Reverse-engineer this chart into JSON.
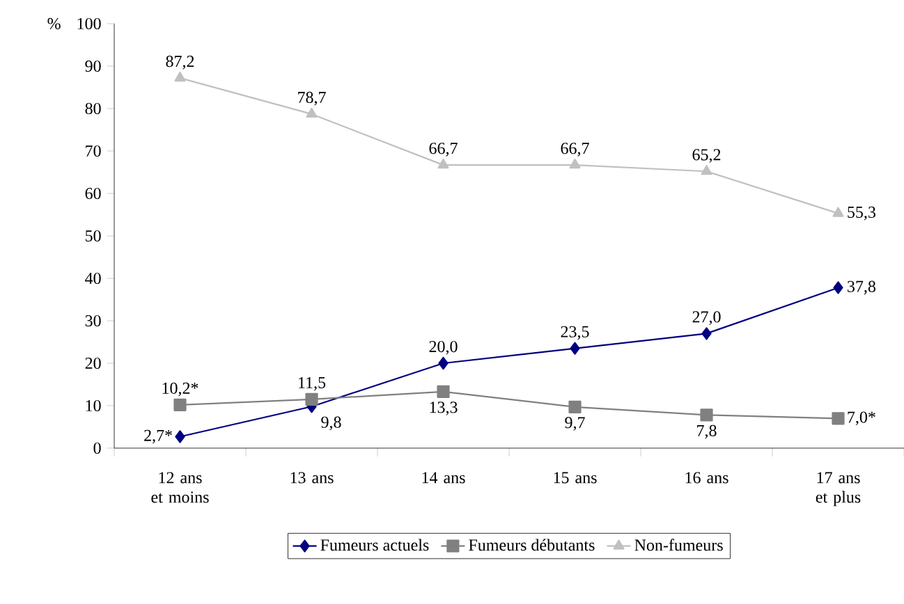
{
  "chart_data": {
    "type": "line",
    "ylabel": "%",
    "categories": [
      "12 ans et moins",
      "13 ans",
      "14 ans",
      "15 ans",
      "16 ans",
      "17 ans et plus"
    ],
    "series": [
      {
        "name": "Fumeurs actuels",
        "color": "#000080",
        "marker": "diamond",
        "values": [
          2.7,
          9.8,
          20.0,
          23.5,
          27.0,
          37.8
        ],
        "value_labels": [
          "2,7*",
          "9,8",
          "20,0",
          "23,5",
          "27,0",
          "37,8"
        ]
      },
      {
        "name": "Fumeurs débutants",
        "color": "#808080",
        "marker": "square",
        "values": [
          10.2,
          11.5,
          13.3,
          9.7,
          7.8,
          7.0
        ],
        "value_labels": [
          "10,2*",
          "11,5",
          "13,3",
          "9,7",
          "7,8",
          "7,0*"
        ]
      },
      {
        "name": "Non-fumeurs",
        "color": "#c0c0c0",
        "marker": "triangle",
        "values": [
          87.2,
          78.7,
          66.7,
          66.7,
          65.2,
          55.3
        ],
        "value_labels": [
          "87,2",
          "78,7",
          "66,7",
          "66,7",
          "65,2",
          "55,3"
        ]
      }
    ],
    "ylim": [
      0,
      100
    ],
    "yticks": [
      0,
      10,
      20,
      30,
      40,
      50,
      60,
      70,
      80,
      90,
      100
    ],
    "grid": false,
    "legend": "bottom",
    "line_style": "solid"
  }
}
